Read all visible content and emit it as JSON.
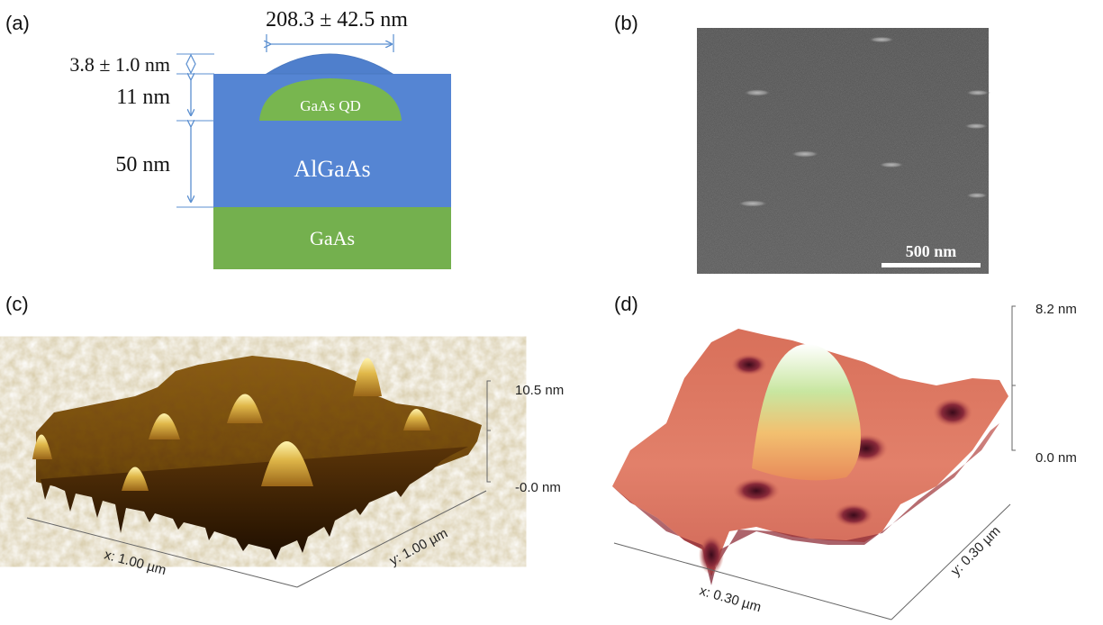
{
  "figure": {
    "panel_a": {
      "label": "(a)",
      "width_label": "208.3  ± 42.5 nm",
      "bump_height_label": "3.8 ± 1.0 nm",
      "cap_label": "11 nm",
      "barrier_label": "50 nm",
      "qd_label": "GaAs QD",
      "algaas_label": "AlGaAs",
      "substrate_label": "GaAs",
      "colors": {
        "algaas": "#5585d3",
        "gaas": "#74b04e",
        "qd": "#78b64f",
        "arrow": "#5b8fd0"
      }
    },
    "panel_b": {
      "label": "(b)",
      "scale_bar_label": "500 nm",
      "background_color": "#505050"
    },
    "panel_c": {
      "label": "(c)",
      "z_max_label": "10.5 nm",
      "z_min_label": "-0.0 nm",
      "x_axis_label": "x: 1.00 µm",
      "y_axis_label": "y: 1.00 µm",
      "colormap": [
        "#3a1a00",
        "#8b5a14",
        "#b07a28",
        "#e2c25a",
        "#fff3b0"
      ]
    },
    "panel_d": {
      "label": "(d)",
      "z_max_label": "8.2 nm",
      "z_min_label": "0.0 nm",
      "x_axis_label": "x: 0.30 µm",
      "y_axis_label": "y: 0.30 µm",
      "colormap": [
        "#3a0a1a",
        "#c2504e",
        "#e8805a",
        "#f0c070",
        "#c8e8a0",
        "#ffffff"
      ]
    }
  }
}
